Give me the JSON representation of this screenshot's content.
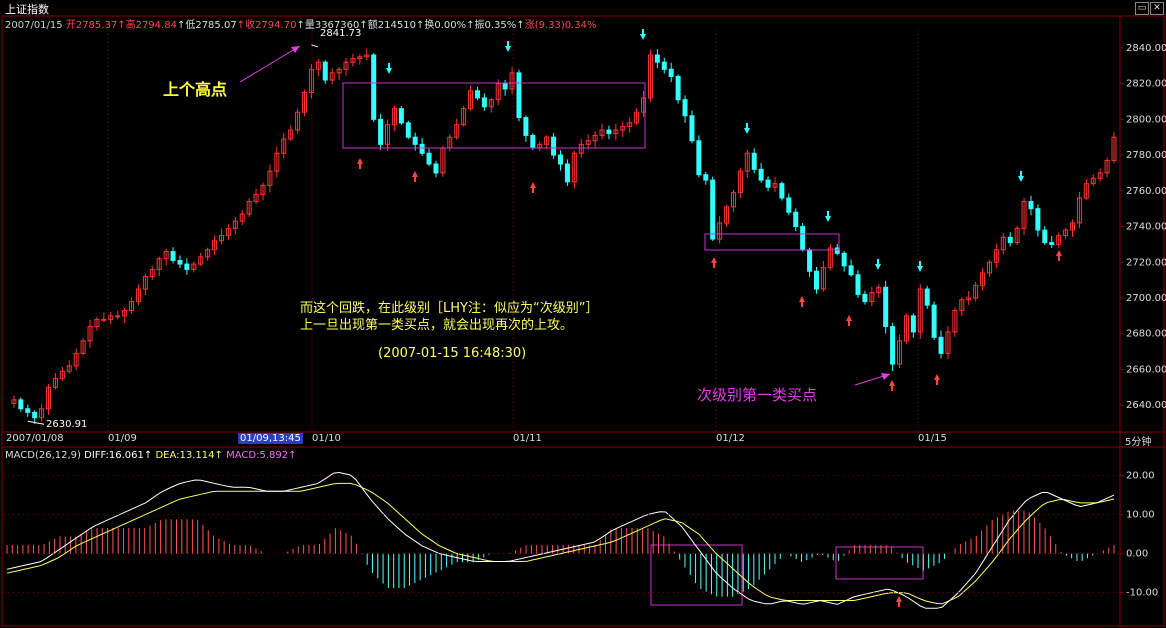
{
  "window": {
    "title": "上证指数"
  },
  "quote_bar": {
    "date": "2007/01/15",
    "open_label": "开",
    "open": "2785.37",
    "high_label": "高",
    "high": "2794.84",
    "low_label": "低",
    "low": "2785.07",
    "close_label": "收",
    "close": "2794.70",
    "volume_label": "量",
    "volume": "3367360",
    "amount_label": "额",
    "amount": "214510",
    "turnover_label": "换",
    "turnover": "0.00%",
    "amplitude_label": "振",
    "amplitude": "0.35%",
    "change_label": "涨",
    "change": "(9.33)0.34%"
  },
  "price_chart": {
    "y_ticks": [
      "2840.00",
      "2820.00",
      "2800.00",
      "2780.00",
      "2760.00",
      "2740.00",
      "2720.00",
      "2700.00",
      "2680.00",
      "2660.00",
      "2640.00"
    ],
    "high_mark": "2841.73",
    "low_mark": "2630.91",
    "x_labels": [
      "2007/01/08",
      "01/09",
      "01/10",
      "01/11",
      "01/12",
      "01/15"
    ],
    "cursor_label": "01/09,13:45",
    "period": "5分钟"
  },
  "annotations": {
    "prev_high": "上个高点",
    "note_line1": "而这个回跌，在此级别［LHY注：似应为“次级别”］",
    "note_line2": "上一旦出现第一类买点，就会出现再次的上攻。",
    "note_time": "(2007-01-15 16:48:30)",
    "buy_point": "次级别第一类买点"
  },
  "macd_bar": {
    "name": "MACD(26,12,9)",
    "diff_label": "DIFF:",
    "diff": "16.061",
    "dea_label": "DEA:",
    "dea": "13.114",
    "macd_label": "MACD:",
    "macd": "5.892"
  },
  "macd_chart": {
    "y_ticks": [
      "20.00",
      "10.00",
      "0.00",
      "-10.00"
    ]
  },
  "colors": {
    "up": "#ff3333",
    "down": "#33ffff",
    "box": "#cc33cc",
    "diff_line": "#ffffff",
    "dea_line": "#ffff66",
    "grid": "#8b0000"
  },
  "chart_data": {
    "type": "candlestick",
    "title": "上证指数",
    "interval": "5分钟",
    "ylim": [
      2625,
      2850
    ],
    "x": [
      "2007/01/08",
      "01/09",
      "01/10",
      "01/11",
      "01/12",
      "01/15"
    ],
    "close_path": [
      [
        0,
        2641
      ],
      [
        4,
        2643
      ],
      [
        8,
        2638
      ],
      [
        12,
        2636
      ],
      [
        16,
        2633
      ],
      [
        20,
        2638
      ],
      [
        24,
        2650
      ],
      [
        28,
        2655
      ],
      [
        32,
        2659
      ],
      [
        36,
        2662
      ],
      [
        40,
        2669
      ],
      [
        44,
        2676
      ],
      [
        48,
        2684
      ],
      [
        52,
        2688
      ],
      [
        56,
        2688
      ],
      [
        60,
        2690
      ],
      [
        64,
        2690
      ],
      [
        68,
        2693
      ],
      [
        72,
        2698
      ],
      [
        76,
        2705
      ],
      [
        80,
        2712
      ],
      [
        84,
        2716
      ],
      [
        88,
        2722
      ],
      [
        92,
        2726
      ],
      [
        96,
        2721
      ],
      [
        100,
        2719
      ],
      [
        104,
        2716
      ],
      [
        108,
        2719
      ],
      [
        112,
        2723
      ],
      [
        116,
        2727
      ],
      [
        120,
        2732
      ],
      [
        124,
        2735
      ],
      [
        128,
        2739
      ],
      [
        132,
        2743
      ],
      [
        136,
        2747
      ],
      [
        140,
        2754
      ],
      [
        144,
        2758
      ],
      [
        148,
        2763
      ],
      [
        152,
        2771
      ],
      [
        156,
        2781
      ],
      [
        160,
        2789
      ],
      [
        164,
        2794
      ],
      [
        168,
        2804
      ],
      [
        172,
        2815
      ],
      [
        176,
        2828
      ],
      [
        180,
        2832
      ],
      [
        184,
        2822
      ],
      [
        188,
        2826
      ],
      [
        192,
        2828
      ],
      [
        196,
        2832
      ],
      [
        200,
        2834
      ],
      [
        204,
        2835
      ],
      [
        208,
        2836
      ],
      [
        212,
        2800
      ],
      [
        216,
        2786
      ],
      [
        220,
        2797
      ],
      [
        224,
        2806
      ],
      [
        228,
        2798
      ],
      [
        232,
        2790
      ],
      [
        236,
        2786
      ],
      [
        240,
        2781
      ],
      [
        244,
        2775
      ],
      [
        248,
        2770
      ],
      [
        252,
        2784
      ],
      [
        256,
        2790
      ],
      [
        260,
        2797
      ],
      [
        264,
        2806
      ],
      [
        268,
        2816
      ],
      [
        272,
        2812
      ],
      [
        276,
        2807
      ],
      [
        280,
        2811
      ],
      [
        284,
        2820
      ],
      [
        288,
        2817
      ],
      [
        292,
        2826
      ],
      [
        296,
        2801
      ],
      [
        300,
        2791
      ],
      [
        304,
        2784
      ],
      [
        308,
        2786
      ],
      [
        312,
        2790
      ],
      [
        316,
        2780
      ],
      [
        320,
        2775
      ],
      [
        324,
        2765
      ],
      [
        328,
        2781
      ],
      [
        332,
        2786
      ],
      [
        336,
        2788
      ],
      [
        340,
        2791
      ],
      [
        344,
        2794
      ],
      [
        348,
        2792
      ],
      [
        352,
        2794
      ],
      [
        356,
        2796
      ],
      [
        360,
        2798
      ],
      [
        364,
        2804
      ],
      [
        368,
        2812
      ],
      [
        372,
        2836
      ],
      [
        376,
        2832
      ],
      [
        380,
        2828
      ],
      [
        384,
        2824
      ],
      [
        388,
        2811
      ],
      [
        392,
        2802
      ],
      [
        396,
        2788
      ],
      [
        400,
        2769
      ],
      [
        404,
        2766
      ],
      [
        408,
        2733
      ],
      [
        412,
        2742
      ],
      [
        416,
        2751
      ],
      [
        420,
        2759
      ],
      [
        424,
        2771
      ],
      [
        428,
        2781
      ],
      [
        432,
        2772
      ],
      [
        436,
        2766
      ],
      [
        440,
        2762
      ],
      [
        444,
        2764
      ],
      [
        448,
        2756
      ],
      [
        452,
        2748
      ],
      [
        456,
        2740
      ],
      [
        460,
        2727
      ],
      [
        464,
        2715
      ],
      [
        468,
        2705
      ],
      [
        472,
        2717
      ],
      [
        476,
        2728
      ],
      [
        480,
        2725
      ],
      [
        484,
        2718
      ],
      [
        488,
        2713
      ],
      [
        492,
        2702
      ],
      [
        496,
        2698
      ],
      [
        500,
        2703
      ],
      [
        504,
        2706
      ],
      [
        508,
        2684
      ],
      [
        512,
        2663
      ],
      [
        516,
        2676
      ],
      [
        520,
        2690
      ],
      [
        524,
        2681
      ],
      [
        528,
        2705
      ],
      [
        532,
        2696
      ],
      [
        536,
        2678
      ],
      [
        540,
        2669
      ],
      [
        544,
        2681
      ],
      [
        548,
        2693
      ],
      [
        552,
        2699
      ],
      [
        556,
        2700
      ],
      [
        560,
        2707
      ],
      [
        564,
        2714
      ],
      [
        568,
        2720
      ],
      [
        572,
        2727
      ],
      [
        576,
        2734
      ],
      [
        580,
        2731
      ],
      [
        584,
        2739
      ],
      [
        588,
        2754
      ],
      [
        592,
        2750
      ],
      [
        596,
        2738
      ],
      [
        600,
        2731
      ],
      [
        604,
        2730
      ],
      [
        608,
        2735
      ],
      [
        612,
        2738
      ],
      [
        616,
        2742
      ],
      [
        620,
        2756
      ],
      [
        624,
        2764
      ],
      [
        628,
        2767
      ],
      [
        632,
        2770
      ],
      [
        636,
        2777
      ],
      [
        640,
        2790
      ]
    ],
    "high": 2841.73,
    "low": 2630.91,
    "macd": {
      "ylim": [
        -17,
        24
      ],
      "diff": [
        -4,
        -3,
        -2,
        1,
        4,
        7,
        9,
        11,
        13,
        16,
        18,
        19,
        18,
        17,
        17,
        16,
        16,
        17,
        18,
        21,
        20,
        14,
        9,
        5,
        2,
        0,
        -1,
        -2,
        -2,
        -2,
        -1,
        0,
        1,
        2,
        3,
        6,
        8,
        10,
        11,
        7,
        1,
        -5,
        -9,
        -12,
        -13,
        -12,
        -13,
        -12,
        -13,
        -11,
        -10,
        -9,
        -11,
        -14,
        -14,
        -10,
        -5,
        2,
        9,
        14,
        16,
        14,
        12,
        13,
        15
      ],
      "dea": [
        -5,
        -4,
        -3,
        -1,
        2,
        4,
        6,
        8,
        10,
        12,
        14,
        15,
        16,
        16,
        16,
        16,
        16,
        16,
        17,
        18,
        18,
        16,
        13,
        9,
        5,
        2,
        0,
        -1,
        -2,
        -2,
        -2,
        -1,
        0,
        1,
        2,
        3,
        5,
        7,
        9,
        8,
        5,
        0,
        -4,
        -8,
        -11,
        -12,
        -12,
        -12,
        -12,
        -12,
        -11,
        -10,
        -10,
        -12,
        -13,
        -11,
        -7,
        -2,
        4,
        9,
        13,
        14,
        13,
        13,
        14
      ],
      "hist": [
        1,
        1,
        1,
        2,
        2,
        3,
        3,
        3,
        3,
        4,
        4,
        4,
        2,
        1,
        1,
        0,
        0,
        1,
        1,
        3,
        2,
        -2,
        -4,
        -4,
        -3,
        -2,
        -1,
        -1,
        0,
        0,
        1,
        1,
        1,
        1,
        1,
        3,
        3,
        3,
        2,
        -1,
        -4,
        -5,
        -5,
        -4,
        -2,
        0,
        -1,
        0,
        -1,
        1,
        1,
        1,
        -1,
        -2,
        -1,
        1,
        2,
        4,
        5,
        5,
        3,
        0,
        -1,
        0,
        1
      ]
    },
    "macd_yticks": [
      20,
      10,
      0,
      -10
    ]
  }
}
